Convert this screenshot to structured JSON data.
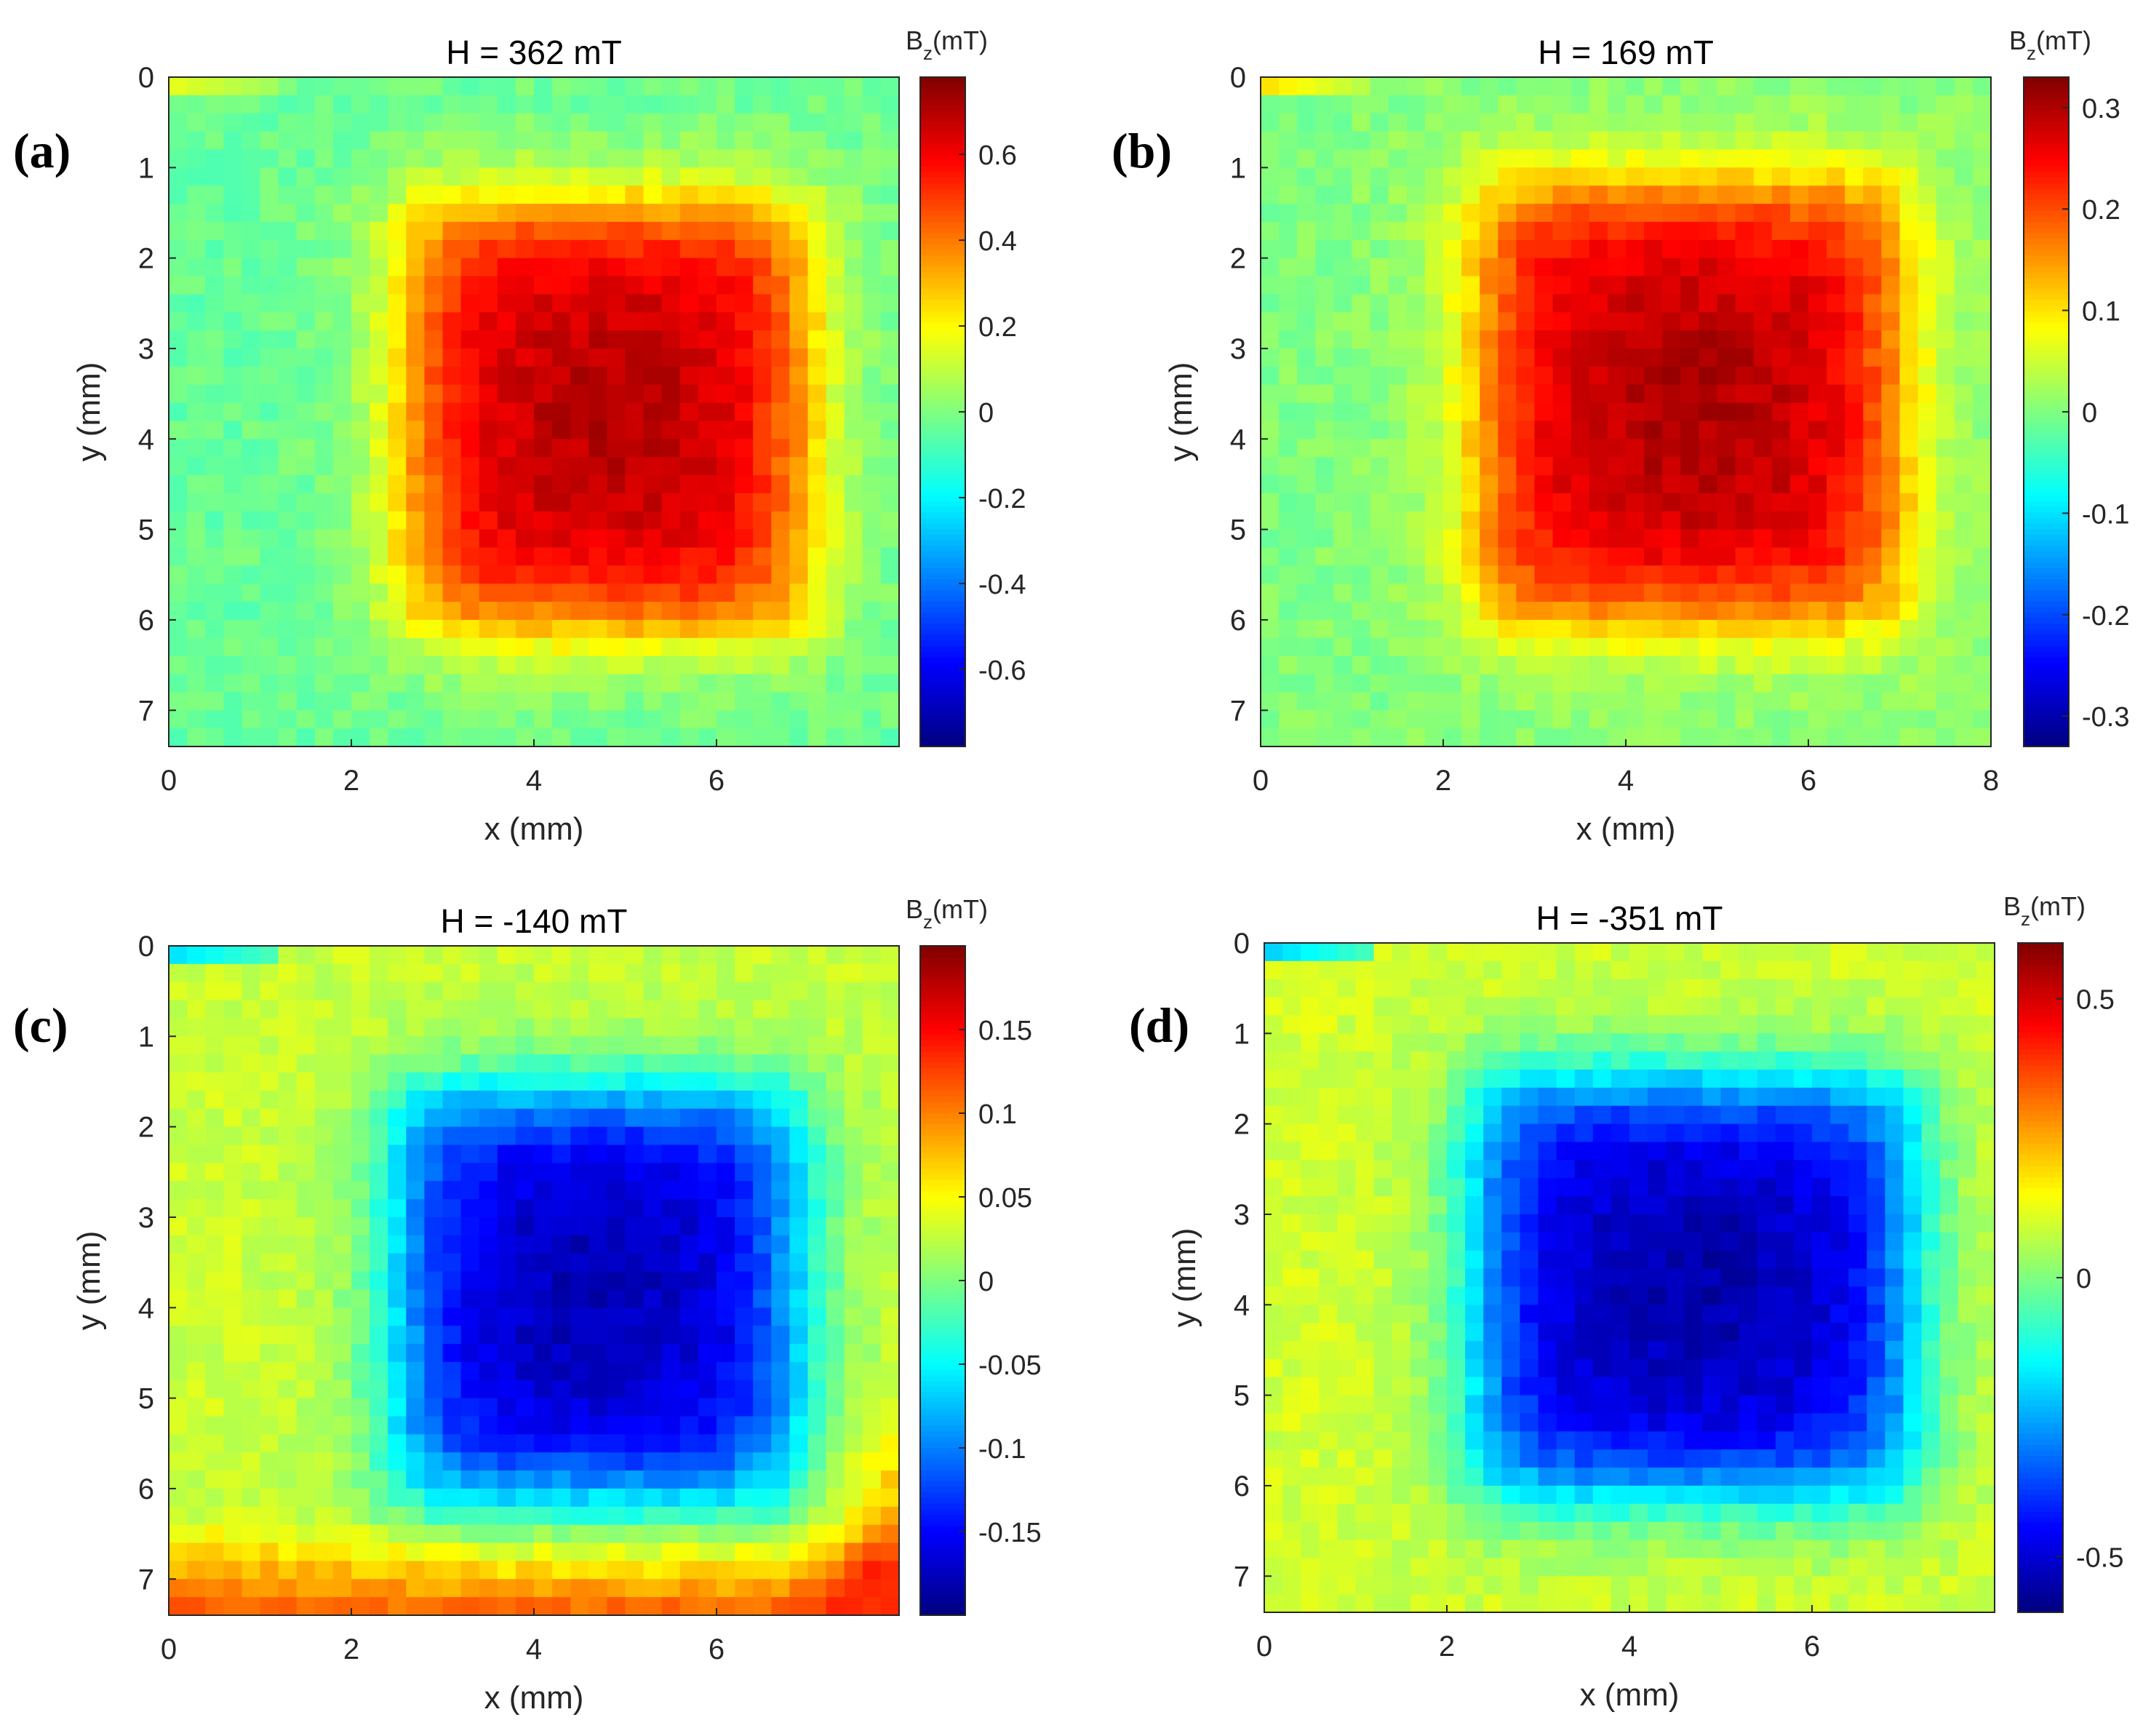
{
  "figure": {
    "background": "#ffffff"
  },
  "chart_data": [
    {
      "type": "heatmap",
      "panel_label": "(a)",
      "title": "H = 362 mT",
      "xlabel": "x (mm)",
      "ylabel": "y (mm)",
      "xlim": [
        0,
        8
      ],
      "ylim": [
        0,
        7.4
      ],
      "x_ticks": [
        "0",
        "2",
        "4",
        "6"
      ],
      "y_ticks": [
        "0",
        "1",
        "2",
        "3",
        "4",
        "5",
        "6",
        "7"
      ],
      "grid_cols": 40,
      "grid_rows": 37,
      "colorbar": {
        "title_main": "B",
        "title_sub": "z",
        "title_unit": "(mT)",
        "range": [
          -0.78,
          0.78
        ],
        "tick_values": [
          0.6,
          0.4,
          0.2,
          0,
          -0.2,
          -0.4,
          -0.6
        ],
        "tick_labels": [
          "0.6",
          "0.4",
          "0.2",
          "0",
          "-0.2",
          "-0.4",
          "-0.6"
        ]
      },
      "field": {
        "peak": 0.7,
        "sign": 1,
        "square": {
          "x0": 2.7,
          "x1": 6.9,
          "y0": 1.5,
          "y1": 6.0
        },
        "background": -0.04,
        "edge_gradient": 0.0,
        "corner_hotspot_value": 0.15
      }
    },
    {
      "type": "heatmap",
      "panel_label": "(b)",
      "title": "H = 169 mT",
      "xlabel": "x (mm)",
      "ylabel": "y (mm)",
      "xlim": [
        0,
        8
      ],
      "ylim": [
        0,
        7.4
      ],
      "x_ticks": [
        "0",
        "2",
        "4",
        "6",
        "8"
      ],
      "y_ticks": [
        "0",
        "1",
        "2",
        "3",
        "4",
        "5",
        "6",
        "7"
      ],
      "grid_cols": 40,
      "grid_rows": 37,
      "colorbar": {
        "title_main": "B",
        "title_sub": "z",
        "title_unit": "(mT)",
        "range": [
          -0.33,
          0.33
        ],
        "tick_values": [
          0.3,
          0.2,
          0.1,
          0,
          -0.1,
          -0.2,
          -0.3
        ],
        "tick_labels": [
          "0.3",
          "0.2",
          "0.1",
          "0",
          "-0.1",
          "-0.2",
          "-0.3"
        ]
      },
      "field": {
        "peak": 0.3,
        "sign": 1,
        "square": {
          "x0": 2.5,
          "x1": 6.9,
          "y0": 1.3,
          "y1": 5.9
        },
        "background": 0.0,
        "edge_gradient": 0.0,
        "corner_hotspot_value": 0.1
      }
    },
    {
      "type": "heatmap",
      "panel_label": "(c)",
      "title": "H = -140 mT",
      "xlabel": "x (mm)",
      "ylabel": "y (mm)",
      "xlim": [
        0,
        8
      ],
      "ylim": [
        0,
        7.4
      ],
      "x_ticks": [
        "0",
        "2",
        "4",
        "6"
      ],
      "y_ticks": [
        "0",
        "1",
        "2",
        "3",
        "4",
        "5",
        "6",
        "7"
      ],
      "grid_cols": 40,
      "grid_rows": 37,
      "colorbar": {
        "title_main": "B",
        "title_sub": "z",
        "title_unit": "(mT)",
        "range": [
          -0.2,
          0.2
        ],
        "tick_values": [
          0.15,
          0.1,
          0.05,
          0,
          -0.05,
          -0.1,
          -0.15
        ],
        "tick_labels": [
          "0.15",
          "0.1",
          "0.05",
          "0",
          "-0.05",
          "-0.1",
          "-0.15"
        ]
      },
      "field": {
        "peak": 0.18,
        "sign": -1,
        "square": {
          "x0": 2.6,
          "x1": 6.8,
          "y0": 1.7,
          "y1": 6.0
        },
        "background": 0.03,
        "edge_gradient": 0.09,
        "corner_hotspot_value": -0.06
      }
    },
    {
      "type": "heatmap",
      "panel_label": "(d)",
      "title": "H = -351 mT",
      "xlabel": "x (mm)",
      "ylabel": "y (mm)",
      "xlim": [
        0,
        8
      ],
      "ylim": [
        0,
        7.4
      ],
      "x_ticks": [
        "0",
        "2",
        "4",
        "6"
      ],
      "y_ticks": [
        "0",
        "1",
        "2",
        "3",
        "4",
        "5",
        "6",
        "7"
      ],
      "grid_cols": 40,
      "grid_rows": 37,
      "colorbar": {
        "title_main": "B",
        "title_sub": "z",
        "title_unit": "(mT)",
        "range": [
          -0.6,
          0.6
        ],
        "tick_values": [
          0.5,
          0,
          -0.5
        ],
        "tick_labels": [
          "0.5",
          "0",
          "-0.5"
        ]
      },
      "field": {
        "peak": 0.55,
        "sign": -1,
        "square": {
          "x0": 2.4,
          "x1": 7.0,
          "y0": 1.6,
          "y1": 6.0
        },
        "background": 0.1,
        "edge_gradient": 0.0,
        "corner_hotspot_value": -0.2
      }
    }
  ]
}
